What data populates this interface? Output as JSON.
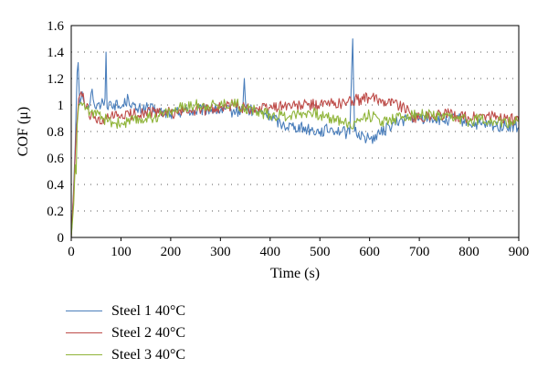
{
  "chart_data": {
    "type": "line",
    "title": "",
    "xlabel": "Time (s)",
    "ylabel": "COF (μ)",
    "xlim": [
      0,
      900
    ],
    "ylim": [
      0,
      1.6
    ],
    "xticks": [
      0,
      100,
      200,
      300,
      400,
      500,
      600,
      700,
      800,
      900
    ],
    "xtick_labels": [
      "0",
      "100",
      "200",
      "300",
      "400",
      "500",
      "600",
      "700",
      "800",
      "900"
    ],
    "yticks": [
      0,
      0.2,
      0.4,
      0.6,
      0.8,
      1.0,
      1.2,
      1.4,
      1.6
    ],
    "ytick_labels": [
      "0",
      "0.2",
      "0.4",
      "0.6",
      "0.8",
      "1",
      "1.2",
      "1.4",
      "1.6"
    ],
    "grid": "horizontal dotted",
    "legend_position": "bottom-left",
    "series": [
      {
        "name": "Steel 1 40°C",
        "color": "#4a7ebb",
        "points": [
          [
            0,
            0
          ],
          [
            4,
            0.3
          ],
          [
            8,
            0.7
          ],
          [
            12,
            1.25
          ],
          [
            14,
            1.32
          ],
          [
            17,
            1.0
          ],
          [
            22,
            1.1
          ],
          [
            30,
            0.98
          ],
          [
            38,
            1.02
          ],
          [
            42,
            1.12
          ],
          [
            48,
            0.98
          ],
          [
            60,
            1.0
          ],
          [
            68,
            1.05
          ],
          [
            70,
            1.4
          ],
          [
            72,
            0.98
          ],
          [
            80,
            1.02
          ],
          [
            100,
            0.98
          ],
          [
            115,
            1.05
          ],
          [
            130,
            0.96
          ],
          [
            150,
            0.98
          ],
          [
            175,
            0.95
          ],
          [
            200,
            0.93
          ],
          [
            225,
            0.96
          ],
          [
            250,
            0.95
          ],
          [
            275,
            0.97
          ],
          [
            300,
            0.96
          ],
          [
            325,
            0.95
          ],
          [
            345,
            0.96
          ],
          [
            348,
            1.2
          ],
          [
            352,
            0.96
          ],
          [
            375,
            0.95
          ],
          [
            400,
            0.92
          ],
          [
            425,
            0.85
          ],
          [
            450,
            0.84
          ],
          [
            475,
            0.82
          ],
          [
            500,
            0.8
          ],
          [
            525,
            0.82
          ],
          [
            545,
            0.8
          ],
          [
            560,
            0.78
          ],
          [
            566,
            1.5
          ],
          [
            570,
            0.8
          ],
          [
            590,
            0.76
          ],
          [
            600,
            0.74
          ],
          [
            620,
            0.78
          ],
          [
            640,
            0.84
          ],
          [
            660,
            0.88
          ],
          [
            680,
            0.9
          ],
          [
            700,
            0.9
          ],
          [
            725,
            0.9
          ],
          [
            750,
            0.88
          ],
          [
            775,
            0.9
          ],
          [
            800,
            0.86
          ],
          [
            825,
            0.85
          ],
          [
            850,
            0.84
          ],
          [
            875,
            0.84
          ],
          [
            900,
            0.83
          ]
        ]
      },
      {
        "name": "Steel 2 40°C",
        "color": "#be4b48",
        "points": [
          [
            0,
            0
          ],
          [
            5,
            0.35
          ],
          [
            10,
            0.8
          ],
          [
            15,
            1.05
          ],
          [
            20,
            1.1
          ],
          [
            30,
            0.98
          ],
          [
            40,
            0.92
          ],
          [
            50,
            0.88
          ],
          [
            60,
            0.86
          ],
          [
            75,
            0.9
          ],
          [
            100,
            0.92
          ],
          [
            125,
            0.93
          ],
          [
            150,
            0.95
          ],
          [
            175,
            0.94
          ],
          [
            200,
            0.94
          ],
          [
            225,
            0.95
          ],
          [
            250,
            0.96
          ],
          [
            275,
            0.97
          ],
          [
            300,
            0.98
          ],
          [
            325,
            1.0
          ],
          [
            350,
            0.98
          ],
          [
            375,
            0.97
          ],
          [
            400,
            0.98
          ],
          [
            425,
            1.0
          ],
          [
            450,
            0.99
          ],
          [
            475,
            1.0
          ],
          [
            500,
            1.0
          ],
          [
            525,
            1.01
          ],
          [
            550,
            1.02
          ],
          [
            575,
            1.04
          ],
          [
            600,
            1.05
          ],
          [
            625,
            1.04
          ],
          [
            650,
            1.02
          ],
          [
            670,
            0.98
          ],
          [
            685,
            0.92
          ],
          [
            700,
            0.9
          ],
          [
            725,
            0.92
          ],
          [
            750,
            0.93
          ],
          [
            775,
            0.92
          ],
          [
            800,
            0.9
          ],
          [
            825,
            0.92
          ],
          [
            850,
            0.91
          ],
          [
            875,
            0.9
          ],
          [
            900,
            0.88
          ]
        ]
      },
      {
        "name": "Steel 3 40°C",
        "color": "#8fb439",
        "points": [
          [
            0,
            0
          ],
          [
            5,
            0.25
          ],
          [
            8,
            0.55
          ],
          [
            10,
            0.48
          ],
          [
            12,
            0.85
          ],
          [
            15,
            1.0
          ],
          [
            20,
            1.02
          ],
          [
            30,
            0.98
          ],
          [
            40,
            0.95
          ],
          [
            50,
            0.92
          ],
          [
            75,
            0.88
          ],
          [
            100,
            0.86
          ],
          [
            125,
            0.88
          ],
          [
            150,
            0.9
          ],
          [
            175,
            0.92
          ],
          [
            200,
            0.95
          ],
          [
            225,
            0.98
          ],
          [
            250,
            1.0
          ],
          [
            275,
            1.0
          ],
          [
            300,
            1.0
          ],
          [
            325,
            1.02
          ],
          [
            350,
            0.98
          ],
          [
            375,
            0.95
          ],
          [
            400,
            0.93
          ],
          [
            425,
            0.92
          ],
          [
            450,
            0.93
          ],
          [
            475,
            0.95
          ],
          [
            500,
            0.92
          ],
          [
            525,
            0.9
          ],
          [
            550,
            0.88
          ],
          [
            565,
            0.82
          ],
          [
            575,
            0.9
          ],
          [
            600,
            0.92
          ],
          [
            625,
            0.88
          ],
          [
            650,
            0.9
          ],
          [
            675,
            0.92
          ],
          [
            700,
            0.93
          ],
          [
            725,
            0.92
          ],
          [
            750,
            0.9
          ],
          [
            775,
            0.9
          ],
          [
            800,
            0.88
          ],
          [
            825,
            0.9
          ],
          [
            850,
            0.88
          ],
          [
            875,
            0.86
          ],
          [
            900,
            0.88
          ]
        ]
      }
    ]
  }
}
